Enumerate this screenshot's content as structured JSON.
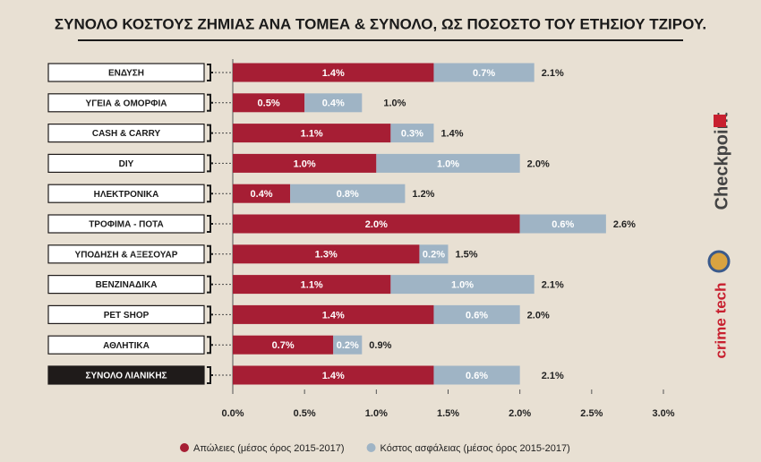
{
  "chart_data": {
    "type": "stacked-barh",
    "title": "ΣΥΝΟΛΟ ΚΟΣΤΟΥΣ ΖΗΜΙΑΣ ΑΝΑ ΤΟΜΕΑ & ΣΥΝΟΛΟ, ΩΣ ΠΟΣΟΣΤΟ ΤΟΥ ΕΤΗΣΙΟΥ ΤΖΙΡΟΥ.",
    "categories": [
      "ΕΝΔΥΣΗ",
      "ΥΓΕΙΑ & ΟΜΟΡΦΙΑ",
      "CASH & CARRY",
      "DIY",
      "ΗΛΕΚΤΡΟΝΙΚΑ",
      "ΤΡΟΦΙΜΑ - ΠΟΤΑ",
      "ΥΠΟΔΗΣΗ & ΑΞΕΣΟΥΑΡ",
      "ΒΕΝΖΙΝΑΔΙΚΑ",
      "PET SHOP",
      "ΑΘΛΗΤΙΚΑ",
      "ΣΥΝΟΛΟ ΛΙΑΝΙΚΗΣ"
    ],
    "series": [
      {
        "name": "Απώλειες (μέσος όρος 2015-2017)",
        "color": "#a61e34",
        "values": [
          1.4,
          0.5,
          1.1,
          1.0,
          0.4,
          2.0,
          1.3,
          1.1,
          1.4,
          0.7,
          1.4
        ],
        "value_labels": [
          "1.4%",
          "0.5%",
          "1.1%",
          "1.0%",
          "0.4%",
          "2.0%",
          "1.3%",
          "1.1%",
          "1.4%",
          "0.7%",
          "1.4%"
        ]
      },
      {
        "name": "Κόστος ασφάλειας (μέσος όρος 2015-2017)",
        "color": "#9fb4c5",
        "values": [
          0.7,
          0.4,
          0.3,
          1.0,
          0.8,
          0.6,
          0.2,
          1.0,
          0.6,
          0.2,
          0.6
        ],
        "value_labels": [
          "0.7%",
          "0.4%",
          "0.3%",
          "1.0%",
          "0.8%",
          "0.6%",
          "0.2%",
          "1.0%",
          "0.6%",
          "0.2%",
          "0.6%"
        ]
      }
    ],
    "totals": [
      2.1,
      1.0,
      1.4,
      2.0,
      1.2,
      2.6,
      1.5,
      2.1,
      2.0,
      0.9,
      2.1
    ],
    "total_labels": [
      "2.1%",
      "1.0%",
      "1.4%",
      "2.0%",
      "1.2%",
      "2.6%",
      "1.5%",
      "2.1%",
      "2.0%",
      "0.9%",
      "2.1%"
    ],
    "xlim": [
      0,
      3.0
    ],
    "xticks": [
      {
        "value": 0,
        "label": "0.0%"
      },
      {
        "value": 0.5,
        "label": "0.5%"
      },
      {
        "value": 1.0,
        "label": "1.0%"
      },
      {
        "value": 1.5,
        "label": "1.5%"
      },
      {
        "value": 2.0,
        "label": "2.0%"
      },
      {
        "value": 2.5,
        "label": "2.5%"
      },
      {
        "value": 3.0,
        "label": "3.0%"
      }
    ],
    "legend": "bottom",
    "logos": [
      "Checkpoint",
      "crime tech"
    ]
  }
}
